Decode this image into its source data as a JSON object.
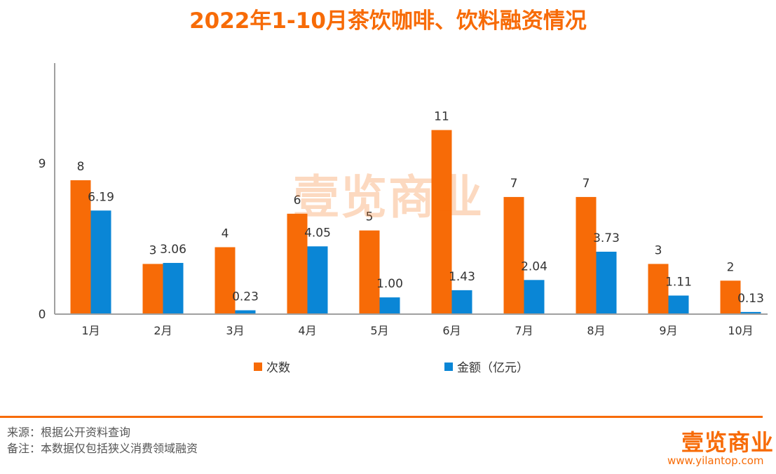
{
  "title": "2022年1-10月茶饮咖啡、饮料融资情况",
  "colors": {
    "orange": "#f76b07",
    "blue": "#0a86d6",
    "axis": "#a0a0a0",
    "text": "#333333"
  },
  "watermark": "壹览商业",
  "footer": {
    "source": "来源：根据公开资料查询",
    "note": "备注：本数据仅包括狭义消费领域融资",
    "logo": "壹览商业",
    "url": "www.yilantop.com"
  },
  "chart_data": {
    "type": "bar",
    "categories": [
      "1月",
      "2月",
      "3月",
      "4月",
      "5月",
      "6月",
      "7月",
      "8月",
      "9月",
      "10月"
    ],
    "series": [
      {
        "name": "次数",
        "values": [
          8,
          3,
          4,
          6,
          5,
          11,
          7,
          7,
          3,
          2
        ],
        "labels": [
          "8",
          "3",
          "4",
          "6",
          "5",
          "11",
          "7",
          "7",
          "3",
          "2"
        ]
      },
      {
        "name": "金额（亿元）",
        "values": [
          6.19,
          3.06,
          0.23,
          4.05,
          1.0,
          1.43,
          2.04,
          3.73,
          1.11,
          0.13
        ],
        "labels": [
          "6.19",
          "3.06",
          "0.23",
          "4.05",
          "1.00",
          "1.43",
          "2.04",
          "3.73",
          "1.11",
          "0.13"
        ]
      }
    ],
    "yticks": [
      "0",
      "9"
    ],
    "ylim": [
      0,
      15
    ],
    "legend": "bottom",
    "grid": false
  }
}
